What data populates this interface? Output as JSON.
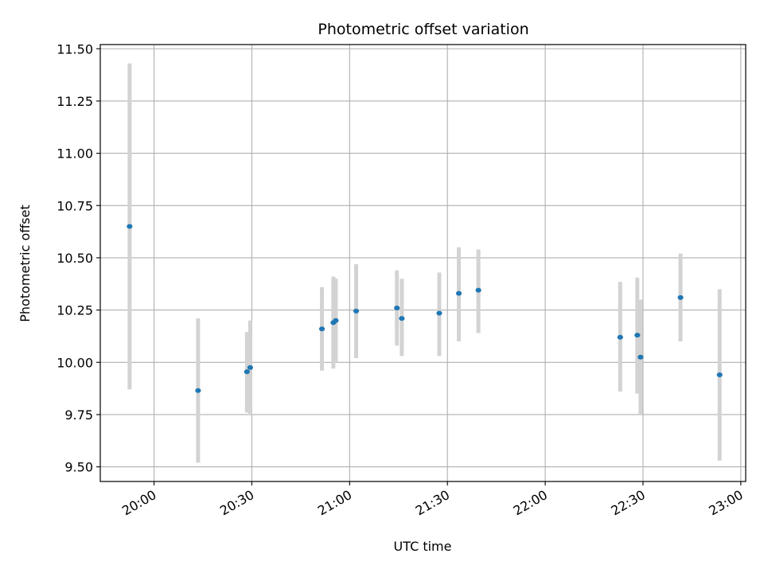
{
  "chart_data": {
    "type": "scatter",
    "title": "Photometric offset variation",
    "xlabel": "UTC time",
    "ylabel": "Photometric offset",
    "x_tick_labels": [
      "20:00",
      "20:30",
      "21:00",
      "21:30",
      "22:00",
      "22:30",
      "23:00"
    ],
    "y_tick_labels": [
      "9.50",
      "9.75",
      "10.00",
      "10.25",
      "10.50",
      "10.75",
      "11.00",
      "11.25",
      "11.50"
    ],
    "x_ticks": [
      "20:00",
      "20:30",
      "21:00",
      "21:30",
      "22:00",
      "22:30",
      "23:00"
    ],
    "y_ticks": [
      9.5,
      9.75,
      10.0,
      10.25,
      10.5,
      10.75,
      11.0,
      11.25,
      11.5
    ],
    "xlim": [
      "19:43:30",
      "23:01:30"
    ],
    "ylim": [
      9.43,
      11.52
    ],
    "grid": true,
    "marker_color": "#1f77b4",
    "errorbar_color": "#d3d3d3",
    "points": [
      {
        "x": "19:52:30",
        "y": 10.65,
        "low": 9.87,
        "high": 11.43
      },
      {
        "x": "20:13:30",
        "y": 9.865,
        "low": 9.52,
        "high": 10.21
      },
      {
        "x": "20:28:30",
        "y": 9.955,
        "low": 9.76,
        "high": 10.145
      },
      {
        "x": "20:29:30",
        "y": 9.975,
        "low": 9.75,
        "high": 10.2
      },
      {
        "x": "20:51:30",
        "y": 10.16,
        "low": 9.96,
        "high": 10.36
      },
      {
        "x": "20:55:00",
        "y": 10.19,
        "low": 9.97,
        "high": 10.41
      },
      {
        "x": "20:55:45",
        "y": 10.2,
        "low": 10.0,
        "high": 10.4
      },
      {
        "x": "21:02:00",
        "y": 10.245,
        "low": 10.02,
        "high": 10.47
      },
      {
        "x": "21:14:30",
        "y": 10.26,
        "low": 10.08,
        "high": 10.44
      },
      {
        "x": "21:16:00",
        "y": 10.21,
        "low": 10.03,
        "high": 10.4
      },
      {
        "x": "21:27:30",
        "y": 10.235,
        "low": 10.03,
        "high": 10.43
      },
      {
        "x": "21:33:30",
        "y": 10.33,
        "low": 10.1,
        "high": 10.55
      },
      {
        "x": "21:39:30",
        "y": 10.345,
        "low": 10.14,
        "high": 10.54
      },
      {
        "x": "22:23:00",
        "y": 10.12,
        "low": 9.86,
        "high": 10.385
      },
      {
        "x": "22:28:15",
        "y": 10.13,
        "low": 9.85,
        "high": 10.405
      },
      {
        "x": "22:29:15",
        "y": 10.025,
        "low": 9.75,
        "high": 10.3
      },
      {
        "x": "22:41:30",
        "y": 10.31,
        "low": 10.1,
        "high": 10.52
      },
      {
        "x": "22:53:30",
        "y": 9.94,
        "low": 9.53,
        "high": 10.35
      }
    ]
  }
}
